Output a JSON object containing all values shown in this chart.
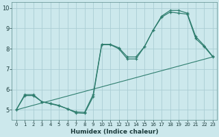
{
  "xlabel": "Humidex (Indice chaleur)",
  "ylabel": "",
  "bg_color": "#cce8ec",
  "grid_color": "#aacdd4",
  "line_color": "#2e7d6e",
  "xlim": [
    -0.5,
    23.5
  ],
  "ylim": [
    4.5,
    10.3
  ],
  "xticks": [
    0,
    1,
    2,
    3,
    4,
    5,
    6,
    7,
    8,
    9,
    10,
    11,
    12,
    13,
    14,
    15,
    16,
    17,
    18,
    19,
    20,
    21,
    22,
    23
  ],
  "yticks": [
    5,
    6,
    7,
    8,
    9,
    10
  ],
  "line1_x": [
    0,
    1,
    2,
    3,
    4,
    5,
    6,
    7,
    8,
    9,
    10,
    11,
    12,
    13,
    14,
    15,
    16,
    17,
    18,
    19,
    20,
    21,
    22,
    23
  ],
  "line1_y": [
    5.0,
    5.7,
    5.7,
    5.4,
    5.3,
    5.2,
    5.05,
    4.85,
    4.83,
    5.65,
    8.2,
    8.2,
    8.0,
    7.5,
    7.5,
    8.1,
    8.9,
    9.55,
    9.8,
    9.75,
    9.7,
    8.5,
    8.1,
    7.6
  ],
  "line2_x": [
    0,
    1,
    2,
    3,
    4,
    5,
    6,
    7,
    8,
    9,
    10,
    11,
    12,
    13,
    14,
    15,
    16,
    17,
    18,
    19,
    20,
    21,
    22,
    23
  ],
  "line2_y": [
    5.0,
    5.75,
    5.75,
    5.4,
    5.32,
    5.22,
    5.05,
    4.9,
    4.88,
    5.75,
    8.22,
    8.22,
    8.05,
    7.6,
    7.6,
    8.1,
    8.9,
    9.6,
    9.88,
    9.88,
    9.75,
    8.6,
    8.15,
    7.62
  ],
  "line3_x": [
    0,
    23
  ],
  "line3_y": [
    5.0,
    7.6
  ]
}
